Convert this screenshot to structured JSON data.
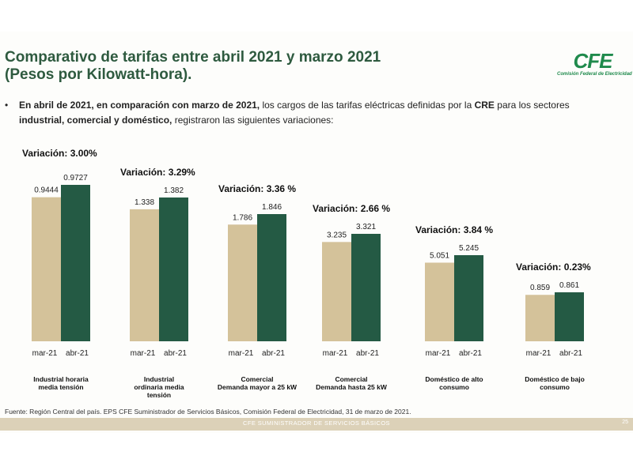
{
  "slide": {
    "title_line1": "Comparativo de tarifas entre abril 2021 y marzo 2021",
    "title_line2": "(Pesos por Kilowatt-hora).",
    "logo_text": "CFE",
    "logo_subtitle": "Comisión Federal de Electricidad",
    "bullet_symbol": "•",
    "bullet": {
      "b1": "En abril de 2021, en comparación con marzo de 2021,",
      "t1": " los cargos de las tarifas eléctricas definidas por la ",
      "b2": "CRE",
      "t2": " para los sectores ",
      "b3": "industrial, comercial y doméstico,",
      "t3": " registraron las siguientes variaciones:"
    },
    "source": "Fuente: Región Central del país. EPS CFE Suministrador de Servicios Básicos, Comisión Federal de Electricidad, 31 de marzo de 2021.",
    "footer": "CFE SUMINISTRADOR DE SERVICIOS BÁSICOS",
    "page_number": "25",
    "colors": {
      "mar": "#d4c29a",
      "abr": "#245a44",
      "title": "#2e5a3f",
      "logo": "#1f8a4c"
    }
  },
  "chart_data": {
    "type": "bar",
    "series": [
      {
        "name": "mar-21"
      },
      {
        "name": "abr-21"
      }
    ],
    "groups": [
      {
        "category": [
          "Industrial horaria",
          "media tensión"
        ],
        "variation": "Variación: 3.00%",
        "mar": 0.9444,
        "abr": 0.9727,
        "mar_label": "0.9444",
        "abr_label": "0.9727"
      },
      {
        "category": [
          "Industrial",
          "ordinaria media",
          "tensión"
        ],
        "variation": "Variación:  3.29%",
        "mar": 1.338,
        "abr": 1.382,
        "mar_label": "1.338",
        "abr_label": "1.382"
      },
      {
        "category": [
          "Comercial",
          "Demanda mayor a 25 kW"
        ],
        "variation": "Variación: 3.36 %",
        "mar": 1.786,
        "abr": 1.846,
        "mar_label": "1.786",
        "abr_label": "1.846"
      },
      {
        "category": [
          "Comercial",
          "Demanda hasta  25 kW"
        ],
        "variation": "Variación:   2.66 %",
        "mar": 3.235,
        "abr": 3.321,
        "mar_label": "3.235",
        "abr_label": "3.321"
      },
      {
        "category": [
          "Doméstico de alto",
          "consumo"
        ],
        "variation": "Variación:  3.84 %",
        "mar": 5.051,
        "abr": 5.245,
        "mar_label": "5.051",
        "abr_label": "5.245"
      },
      {
        "category": [
          "Doméstico de bajo",
          "consumo"
        ],
        "variation": "Variación: 0.23%",
        "mar": 0.859,
        "abr": 0.861,
        "mar_label": "0.859",
        "abr_label": "0.861"
      }
    ]
  }
}
